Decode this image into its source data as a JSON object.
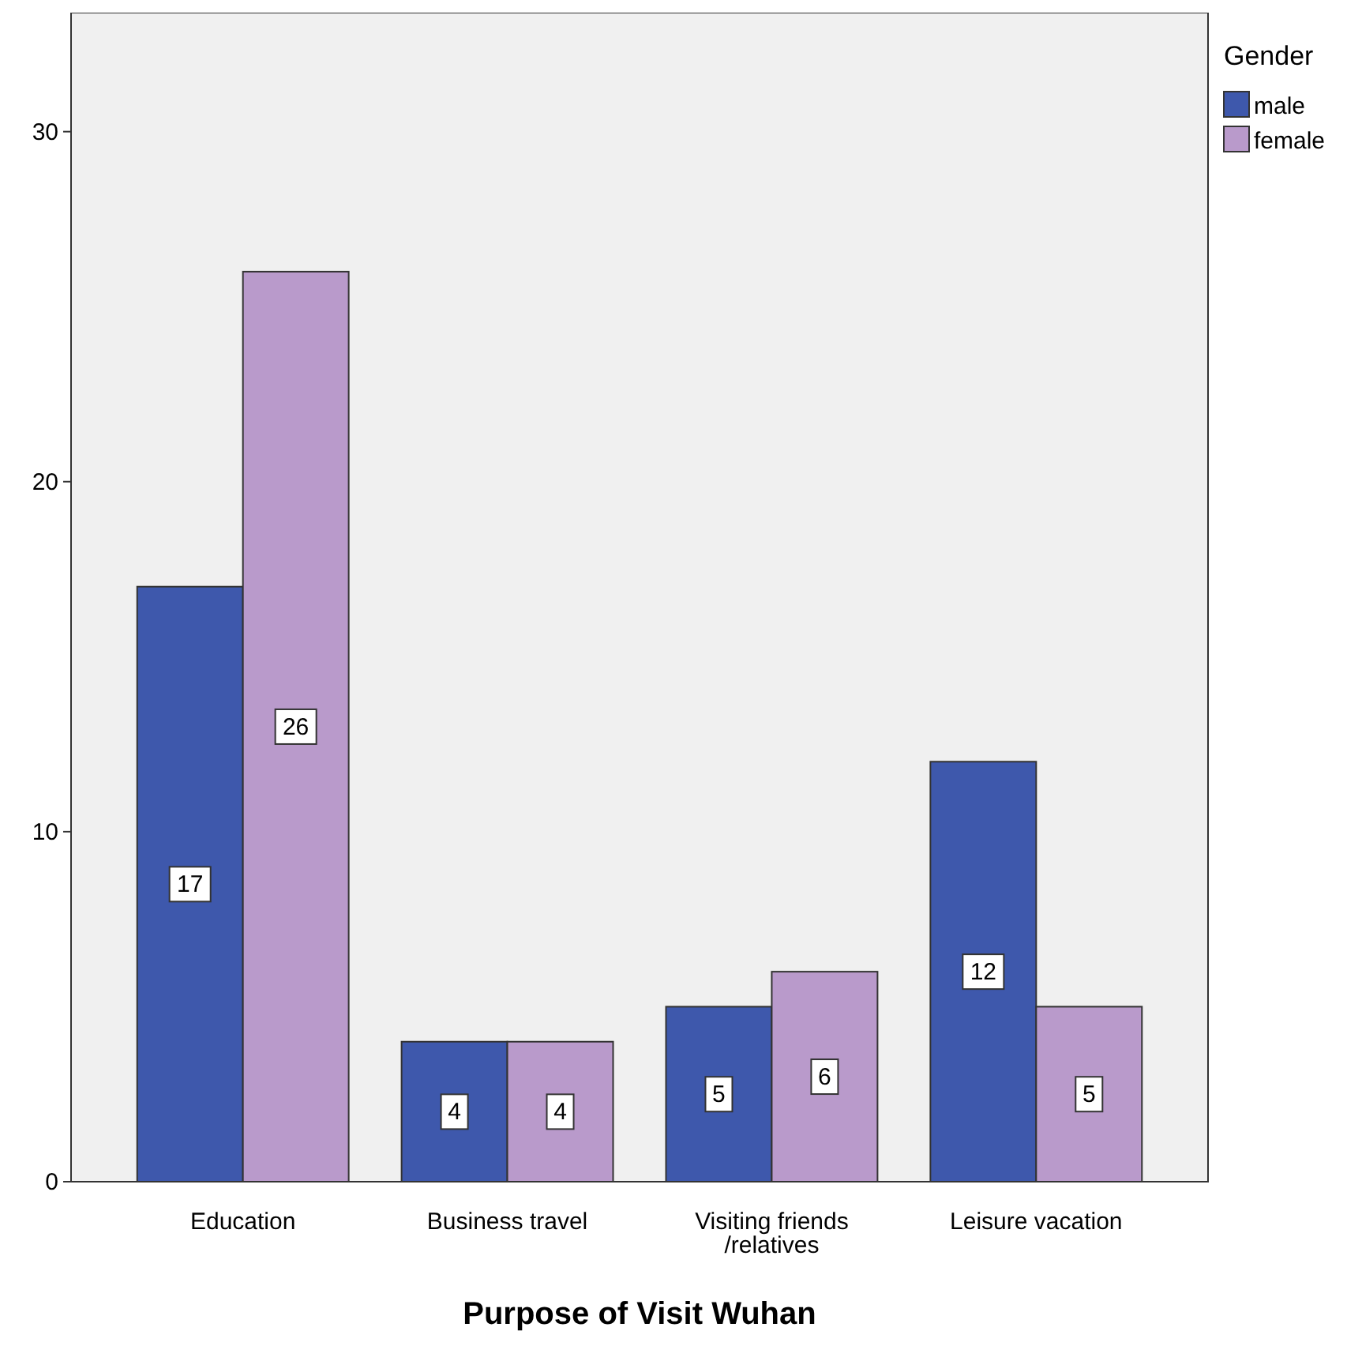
{
  "chart_data": {
    "type": "bar",
    "xlabel": "Purpose of Visit Wuhan",
    "legend_title": "Gender",
    "categories": [
      "Education",
      "Business travel",
      "Visiting friends /relatives",
      "Leisure vacation"
    ],
    "series": [
      {
        "name": "male",
        "color": "#3e58ac",
        "values": [
          17,
          4,
          5,
          12
        ]
      },
      {
        "name": "female",
        "color": "#b99acb",
        "values": [
          26,
          4,
          6,
          5
        ]
      }
    ],
    "ylim": [
      0,
      33.4
    ],
    "yticks": [
      0,
      10,
      20,
      30
    ],
    "grid": false,
    "legend": "top right",
    "data_labels": true
  }
}
